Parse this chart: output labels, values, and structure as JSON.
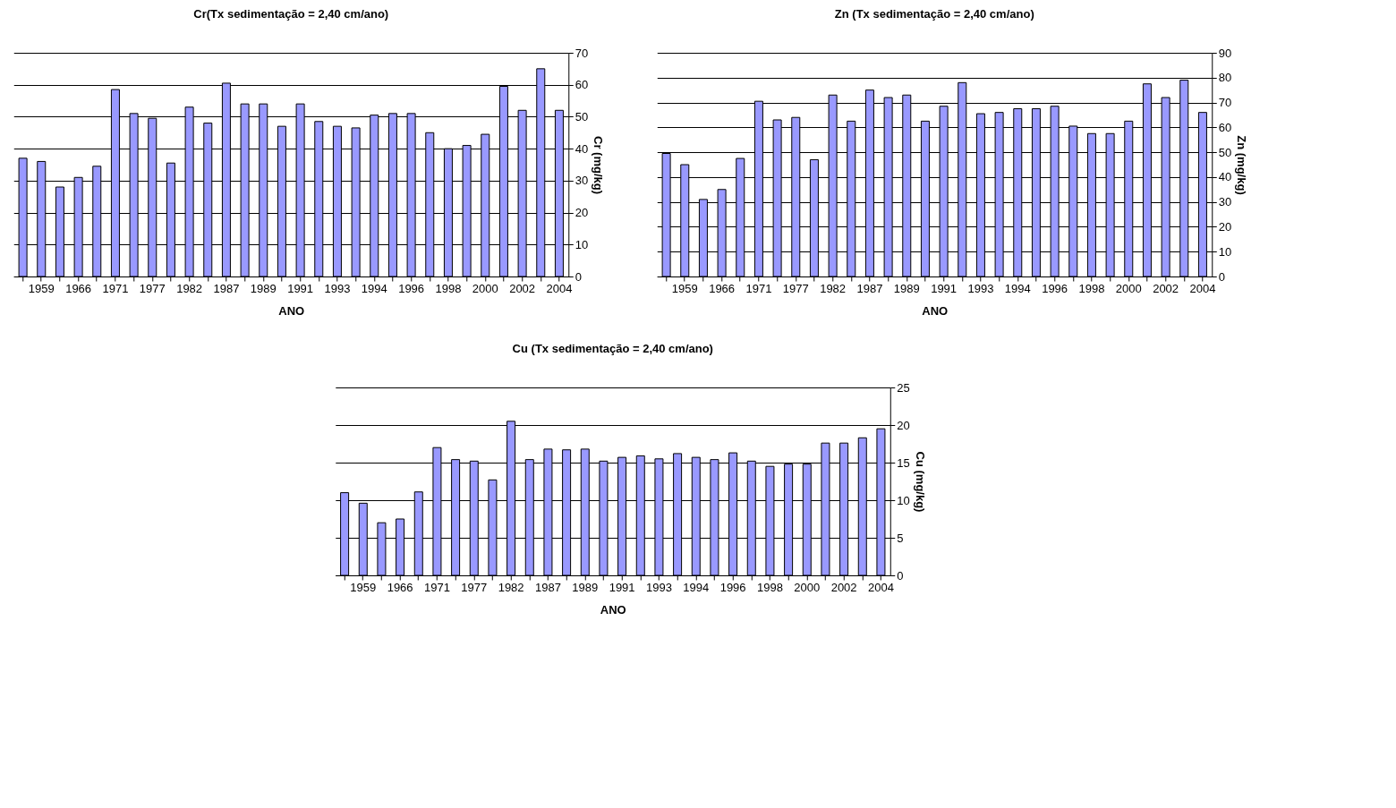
{
  "chart_data": [
    {
      "type": "bar",
      "title": "Cr(Tx sedimentação = 2,40 cm/ano)",
      "xlabel": "ANO",
      "ylabel": "Cr (mg/kg)",
      "categories": [
        null,
        "1959",
        null,
        "1966",
        null,
        "1971",
        null,
        "1977",
        null,
        "1982",
        null,
        "1987",
        null,
        "1989",
        null,
        "1991",
        null,
        "1993",
        null,
        "1994",
        null,
        "1996",
        null,
        "1998",
        null,
        "2000",
        null,
        "2002",
        null,
        "2004"
      ],
      "series": [
        {
          "color": "#9999ff",
          "values": [
            37,
            36,
            28,
            31,
            34.5,
            58.5,
            51,
            49.5,
            35.5,
            53,
            48,
            60.5,
            54,
            54,
            47,
            54,
            48.5,
            47,
            46.5,
            50.5,
            51,
            51,
            45,
            40,
            41,
            44.5,
            59.5,
            52,
            65,
            52
          ]
        }
      ],
      "ylim": [
        0,
        70
      ],
      "yticks": [
        0,
        10,
        20,
        30,
        40,
        50,
        60,
        70
      ],
      "grid": "y",
      "legend": false
    },
    {
      "type": "bar",
      "title": "Zn (Tx sedimentação = 2,40 cm/ano)",
      "xlabel": "ANO",
      "ylabel": "Zn (mg/kg)",
      "categories": [
        null,
        "1959",
        null,
        "1966",
        null,
        "1971",
        null,
        "1977",
        null,
        "1982",
        null,
        "1987",
        null,
        "1989",
        null,
        "1991",
        null,
        "1993",
        null,
        "1994",
        null,
        "1996",
        null,
        "1998",
        null,
        "2000",
        null,
        "2002",
        null,
        "2004"
      ],
      "series": [
        {
          "color": "#9999ff",
          "values": [
            49.5,
            45,
            31,
            35,
            47.5,
            70.5,
            63,
            64,
            47,
            73,
            62.5,
            75,
            72,
            73,
            62.5,
            68.5,
            78,
            65.5,
            66,
            67.5,
            67.5,
            68.5,
            60.5,
            57.5,
            57.5,
            62.5,
            77.5,
            72,
            79,
            66
          ]
        }
      ],
      "ylim": [
        0,
        90
      ],
      "yticks": [
        0,
        10,
        20,
        30,
        40,
        50,
        60,
        70,
        80,
        90
      ],
      "grid": "y",
      "legend": false
    },
    {
      "type": "bar",
      "title": "Cu (Tx sedimentação = 2,40 cm/ano)",
      "xlabel": "ANO",
      "ylabel": "Cu (mg/kg)",
      "categories": [
        null,
        "1959",
        null,
        "1966",
        null,
        "1971",
        null,
        "1977",
        null,
        "1982",
        null,
        "1987",
        null,
        "1989",
        null,
        "1991",
        null,
        "1993",
        null,
        "1994",
        null,
        "1996",
        null,
        "1998",
        null,
        "2000",
        null,
        "2002",
        null,
        "2004"
      ],
      "series": [
        {
          "color": "#9999ff",
          "values": [
            11,
            9.6,
            7,
            7.5,
            11.1,
            17,
            15.4,
            15.2,
            12.7,
            20.5,
            15.4,
            16.8,
            16.7,
            16.8,
            15.2,
            15.7,
            15.9,
            15.5,
            16.2,
            15.7,
            15.4,
            16.3,
            15.2,
            14.5,
            14.8,
            14.8,
            17.6,
            17.6,
            18.3,
            19.5
          ]
        }
      ],
      "ylim": [
        0,
        25
      ],
      "yticks": [
        0,
        5,
        10,
        15,
        20,
        25
      ],
      "grid": "y",
      "legend": false
    }
  ]
}
